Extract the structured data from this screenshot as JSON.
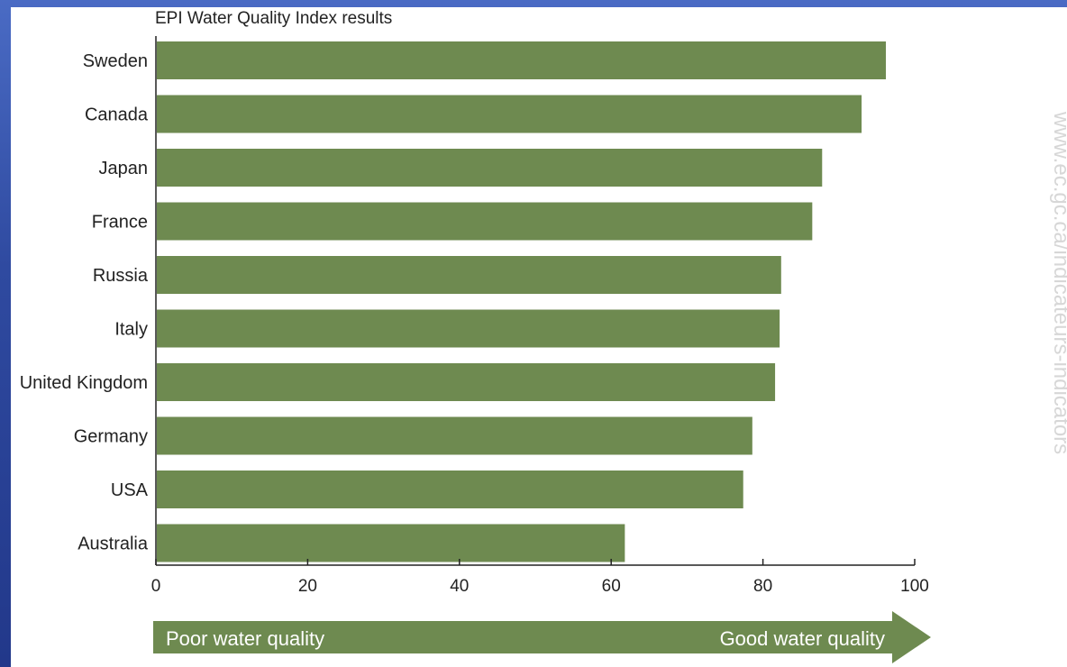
{
  "chart_data": {
    "type": "bar",
    "orientation": "horizontal",
    "title": "EPI Water Quality Index results",
    "categories": [
      "Sweden",
      "Canada",
      "Japan",
      "France",
      "Russia",
      "Italy",
      "United Kingdom",
      "Germany",
      "USA",
      "Australia"
    ],
    "values": [
      96.2,
      93.0,
      87.8,
      86.5,
      82.4,
      82.2,
      81.6,
      78.6,
      77.4,
      61.8
    ],
    "xlim": [
      0,
      100
    ],
    "xticks": [
      0,
      20,
      40,
      60,
      80,
      100
    ],
    "grid": false,
    "legend": "none",
    "bar_color": "#6e8a50"
  },
  "arrow": {
    "left_label": "Poor water quality",
    "right_label": "Good water quality",
    "color": "#6e8a50"
  },
  "watermark": "www.ec.gc.ca/indicateurs-indicators",
  "colors": {
    "background": "#2f4aa0",
    "panel": "#ffffff"
  }
}
